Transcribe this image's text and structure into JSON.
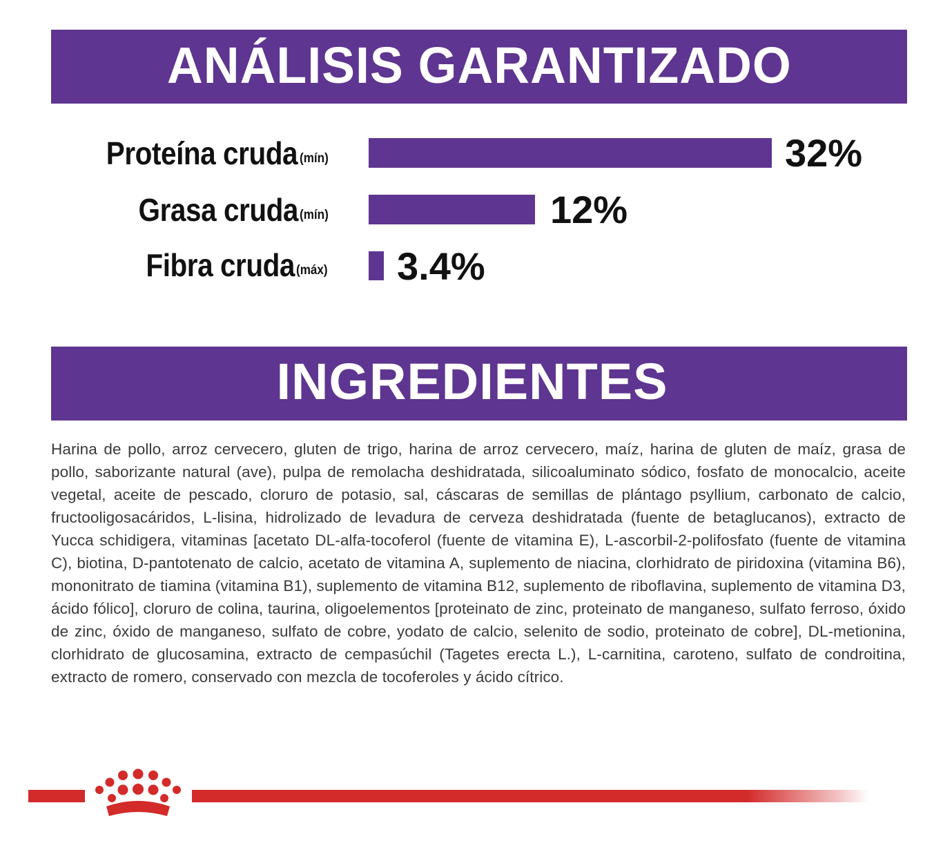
{
  "colors": {
    "banner_purple": "#5e3590",
    "bar_purple": "#5e3590",
    "brand_red": "#d32a2a",
    "text_dark": "#111111",
    "text_body": "#3a3a3a",
    "background": "#ffffff"
  },
  "analysis": {
    "title": "ANÁLISIS GARANTIZADO",
    "nutrients": [
      {
        "name": "Proteína cruda",
        "qualifier": "(mín)",
        "value_label": "32%",
        "value": 32
      },
      {
        "name": "Grasa cruda",
        "qualifier": "(mín)",
        "value_label": "12%",
        "value": 12
      },
      {
        "name": "Fibra cruda",
        "qualifier": "(máx)",
        "value_label": "3.4%",
        "value": 3.4
      }
    ]
  },
  "ingredients": {
    "title": "INGREDIENTES",
    "text": "Harina de pollo, arroz cervecero, gluten de trigo, harina de arroz cervecero, maíz, harina de gluten de maíz, grasa de pollo, saborizante natural (ave), pulpa de remolacha deshidratada, silicoaluminato sódico, fosfato de monocalcio, aceite vegetal, aceite de pescado, cloruro de potasio, sal, cáscaras de semillas de plántago psyllium, carbonato de calcio, fructooligosacáridos, L-lisina, hidrolizado de levadura de cerveza deshidratada (fuente de betaglucanos), extracto de Yucca schidigera, vitaminas [acetato DL-alfa-tocoferol (fuente de vitamina E), L-ascorbil-2-polifosfato (fuente de vitamina C), biotina, D-pantotenato de calcio, acetato de vitamina A, suplemento de niacina, clorhidrato de piridoxina (vitamina B6), mononitrato de tiamina (vitamina B1), suplemento de vitamina B12, suplemento de riboflavina, suplemento de vitamina D3, ácido fólico], cloruro de colina, taurina, oligoelementos [proteinato de zinc, proteinato de manganeso, sulfato ferroso, óxido de zinc, óxido de manganeso, sulfato de cobre, yodato de calcio, selenito de sodio, proteinato de cobre], DL-metionina, clorhidrato de glucosamina, extracto de cempasúchil (Tagetes erecta L.), L-carnitina, caroteno, sulfato de condroitina, extracto de romero, conservado con mezcla de tocoferoles y ácido cítrico."
  },
  "footer": {
    "logo_icon": "crown-icon"
  }
}
